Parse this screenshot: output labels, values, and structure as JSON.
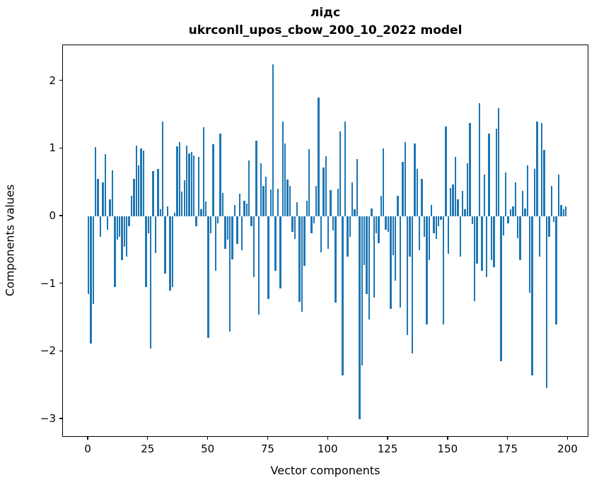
{
  "figure": {
    "title_line1": "лідс",
    "title_line2": "ukrconll_upos_cbow_200_10_2022 model",
    "xlabel": "Vector components",
    "ylabel": "Components values"
  },
  "colors": {
    "bar": "#1f77b4",
    "text": "#000000",
    "spine": "#000000",
    "background": "#ffffff"
  },
  "chart_data": {
    "type": "bar",
    "title": "лідс",
    "subtitle": "ukrconll_upos_cbow_200_10_2022 model",
    "xlabel": "Vector components",
    "ylabel": "Components values",
    "x_start": 0,
    "n_bars": 200,
    "xlim": [
      -10.6,
      209
    ],
    "ylim": [
      -3.26,
      2.55
    ],
    "grid": false,
    "legend": false,
    "x_tick_values": [
      0,
      25,
      50,
      75,
      100,
      125,
      150,
      175,
      200
    ],
    "x_tick_labels": [
      "0",
      "25",
      "50",
      "75",
      "100",
      "125",
      "150",
      "175",
      "200"
    ],
    "y_tick_values": [
      2,
      1,
      0,
      -1,
      -2,
      -3
    ],
    "y_tick_labels": [
      "2",
      "1",
      "0",
      "−1",
      "−2",
      "−3"
    ],
    "values": [
      -1.15,
      -1.88,
      -1.3,
      1.02,
      0.55,
      -0.3,
      0.5,
      0.92,
      -0.2,
      0.25,
      0.68,
      -1.05,
      -0.35,
      -0.3,
      -0.65,
      -0.45,
      -0.6,
      -0.15,
      0.3,
      0.55,
      1.05,
      0.75,
      1.0,
      0.97,
      -1.05,
      -0.25,
      -1.95,
      0.67,
      -0.54,
      0.7,
      0.1,
      1.4,
      -0.85,
      0.15,
      -1.1,
      -1.05,
      0.05,
      1.03,
      1.1,
      0.37,
      0.53,
      1.05,
      0.93,
      0.95,
      0.9,
      -0.15,
      0.88,
      0.1,
      1.32,
      0.22,
      -1.8,
      -0.25,
      1.07,
      -0.8,
      -0.1,
      1.22,
      0.35,
      -0.48,
      -0.35,
      -1.7,
      -0.64,
      0.17,
      -0.41,
      0.33,
      -0.5,
      0.23,
      0.19,
      0.83,
      -0.15,
      -0.9,
      1.12,
      -1.45,
      0.78,
      0.45,
      0.58,
      -1.22,
      0.4,
      2.25,
      -0.8,
      0.41,
      -1.07,
      1.4,
      1.08,
      0.54,
      0.45,
      -0.23,
      -0.33,
      0.21,
      -1.26,
      -1.41,
      -0.73,
      0.23,
      0.99,
      -0.25,
      -0.1,
      0.45,
      1.76,
      -0.53,
      0.72,
      0.89,
      -0.48,
      0.39,
      -0.21,
      -1.27,
      0.41,
      1.25,
      -2.35,
      1.4,
      -0.6,
      -0.3,
      0.5,
      0.1,
      0.85,
      -3.0,
      -2.21,
      -0.72,
      -1.15,
      -1.53,
      0.12,
      -1.2,
      -0.25,
      -0.4,
      0.3,
      1.0,
      -0.2,
      -0.23,
      -1.37,
      -0.57,
      -0.95,
      0.3,
      -1.35,
      0.8,
      1.1,
      -1.76,
      -0.6,
      -2.03,
      1.08,
      0.7,
      -0.5,
      0.55,
      -0.3,
      -1.6,
      -0.65,
      0.17,
      -0.25,
      -0.33,
      -0.15,
      -0.05,
      -1.6,
      1.33,
      -0.55,
      0.42,
      0.47,
      0.88,
      0.25,
      -0.6,
      0.38,
      0.1,
      0.78,
      1.38,
      -0.12,
      -1.25,
      -0.7,
      1.67,
      -0.8,
      0.62,
      -0.9,
      1.22,
      -0.65,
      -0.75,
      1.3,
      1.6,
      -2.14,
      -0.28,
      0.65,
      -0.1,
      0.1,
      0.15,
      0.5,
      -0.32,
      -0.65,
      0.38,
      0.12,
      0.75,
      -1.13,
      -2.35,
      0.7,
      1.4,
      -0.6,
      1.38,
      0.98,
      -2.54,
      -0.3,
      0.45,
      -0.08,
      -1.6,
      0.62,
      0.17,
      0.1,
      0.15
    ]
  }
}
